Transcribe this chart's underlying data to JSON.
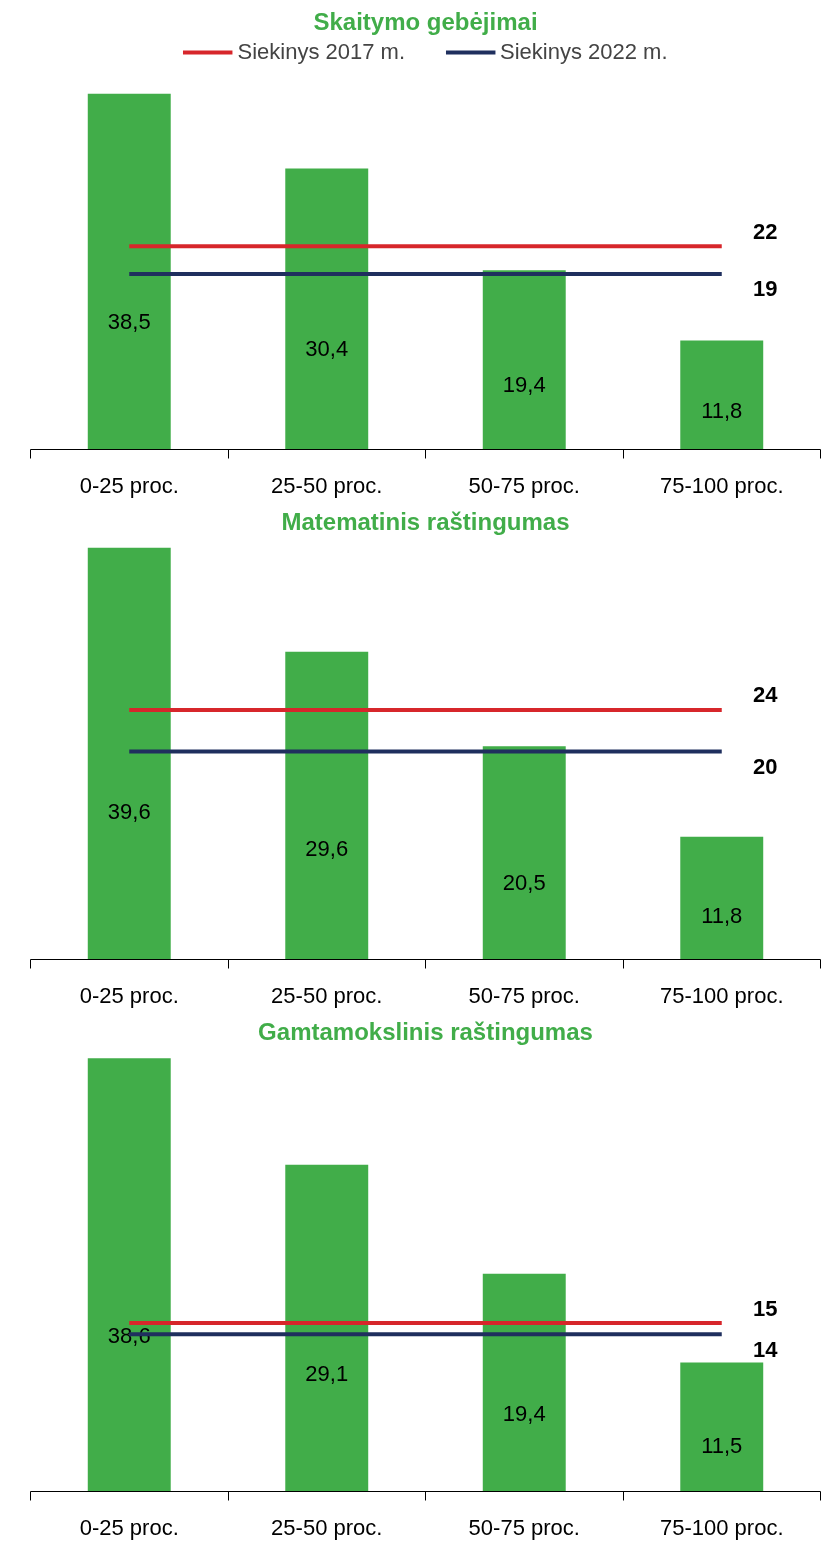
{
  "chart_data": [
    {
      "type": "bar",
      "title": "Skaitymo gebėjimai",
      "categories": [
        "0-25 proc.",
        "25-50 proc.",
        "50-75 proc.",
        "75-100 proc."
      ],
      "legend": "top",
      "grid": false,
      "series": [
        {
          "color": "#41ad49",
          "values": [
            38.5,
            30.4,
            19.4,
            11.8
          ],
          "value_labels": [
            "38,5",
            "30,4",
            "19,4",
            "11,8"
          ]
        },
        {
          "type": "line",
          "name": "Siekinys 2017 m.",
          "color": "#d7262b",
          "values": [
            22,
            22,
            22,
            22
          ],
          "value_labels": [
            null,
            null,
            null,
            "22"
          ]
        },
        {
          "type": "line",
          "name": "Siekinys 2022 m.",
          "color": "#1f2f5e",
          "values": [
            19,
            19,
            19,
            19
          ],
          "value_labels": [
            null,
            null,
            null,
            "19"
          ]
        }
      ]
    },
    {
      "type": "bar",
      "title": "Matematinis raštingumas",
      "categories": [
        "0-25 proc.",
        "25-50 proc.",
        "50-75 proc.",
        "75-100 proc."
      ],
      "legend": false,
      "grid": false,
      "series": [
        {
          "color": "#41ad49",
          "values": [
            39.6,
            29.6,
            20.5,
            11.8
          ],
          "value_labels": [
            "39,6",
            "29,6",
            "20,5",
            "11,8"
          ]
        },
        {
          "type": "line",
          "color": "#d7262b",
          "values": [
            24,
            24,
            24,
            24
          ],
          "value_labels": [
            null,
            null,
            null,
            "24"
          ]
        },
        {
          "type": "line",
          "color": "#1f2f5e",
          "values": [
            20,
            20,
            20,
            20
          ],
          "value_labels": [
            null,
            null,
            null,
            "20"
          ]
        }
      ]
    },
    {
      "type": "bar",
      "title": "Gamtamokslinis raštingumas",
      "categories": [
        "0-25 proc.",
        "25-50 proc.",
        "50-75 proc.",
        "75-100 proc."
      ],
      "legend": false,
      "grid": false,
      "series": [
        {
          "color": "#41ad49",
          "values": [
            38.6,
            29.1,
            19.4,
            11.5
          ],
          "value_labels": [
            "38,6",
            "29,1",
            "19,4",
            "11,5"
          ]
        },
        {
          "type": "line",
          "color": "#d7262b",
          "values": [
            15,
            15,
            15,
            15
          ],
          "value_labels": [
            null,
            null,
            null,
            "15"
          ]
        },
        {
          "type": "line",
          "color": "#1f2f5e",
          "values": [
            14,
            14,
            14,
            14
          ],
          "value_labels": [
            null,
            null,
            null,
            "14"
          ]
        }
      ]
    }
  ]
}
